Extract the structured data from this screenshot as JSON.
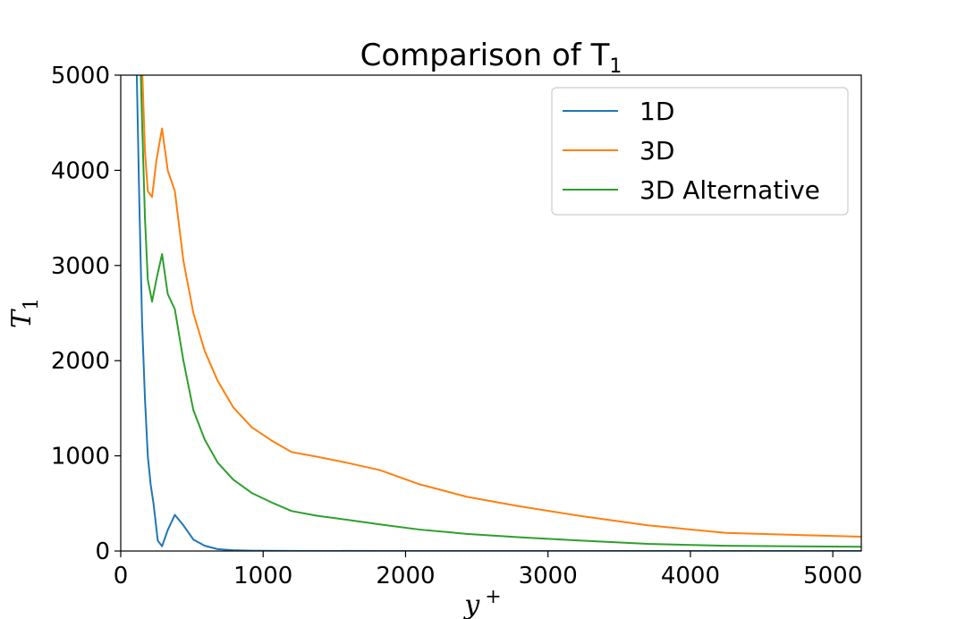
{
  "chart_data": {
    "type": "line",
    "title": "Comparison of T",
    "title_subscript": "1",
    "xlabel": "y",
    "xlabel_superscript": "+",
    "ylabel": "T",
    "ylabel_subscript": "1",
    "xlim": [
      0,
      5200
    ],
    "ylim": [
      0,
      5000
    ],
    "xticks": [
      0,
      1000,
      2000,
      3000,
      4000,
      5000
    ],
    "yticks": [
      0,
      1000,
      2000,
      3000,
      4000,
      5000
    ],
    "grid": false,
    "legend_position": "top-right",
    "series": [
      {
        "name": "1D",
        "color": "#1f77b4",
        "points": [
          [
            110,
            5200
          ],
          [
            130,
            3700
          ],
          [
            150,
            2400
          ],
          [
            170,
            1600
          ],
          [
            190,
            1000
          ],
          [
            210,
            700
          ],
          [
            230,
            500
          ],
          [
            260,
            110
          ],
          [
            290,
            50
          ],
          [
            330,
            220
          ],
          [
            380,
            380
          ],
          [
            440,
            270
          ],
          [
            510,
            120
          ],
          [
            590,
            55
          ],
          [
            680,
            20
          ],
          [
            790,
            8
          ],
          [
            920,
            4
          ],
          [
            1060,
            2
          ],
          [
            1200,
            1
          ],
          [
            2000,
            0
          ],
          [
            3000,
            0
          ],
          [
            4000,
            0
          ],
          [
            5200,
            0
          ]
        ]
      },
      {
        "name": "3D",
        "color": "#ff7f0e",
        "points": [
          [
            130,
            5600
          ],
          [
            150,
            5100
          ],
          [
            170,
            4200
          ],
          [
            190,
            3780
          ],
          [
            220,
            3720
          ],
          [
            250,
            4100
          ],
          [
            290,
            4440
          ],
          [
            330,
            4000
          ],
          [
            380,
            3780
          ],
          [
            440,
            3050
          ],
          [
            510,
            2500
          ],
          [
            590,
            2100
          ],
          [
            680,
            1790
          ],
          [
            790,
            1510
          ],
          [
            920,
            1300
          ],
          [
            1060,
            1160
          ],
          [
            1200,
            1040
          ],
          [
            1380,
            990
          ],
          [
            1580,
            930
          ],
          [
            1820,
            850
          ],
          [
            2100,
            700
          ],
          [
            2430,
            570
          ],
          [
            2800,
            470
          ],
          [
            3220,
            370
          ],
          [
            3700,
            270
          ],
          [
            4250,
            190
          ],
          [
            5200,
            150
          ]
        ]
      },
      {
        "name": "3D Alternative",
        "color": "#2ca02c",
        "points": [
          [
            130,
            5600
          ],
          [
            150,
            4500
          ],
          [
            170,
            3500
          ],
          [
            190,
            2850
          ],
          [
            220,
            2620
          ],
          [
            250,
            2850
          ],
          [
            290,
            3120
          ],
          [
            330,
            2700
          ],
          [
            380,
            2540
          ],
          [
            440,
            2000
          ],
          [
            510,
            1480
          ],
          [
            590,
            1170
          ],
          [
            680,
            930
          ],
          [
            790,
            750
          ],
          [
            920,
            610
          ],
          [
            1060,
            510
          ],
          [
            1200,
            420
          ],
          [
            1380,
            370
          ],
          [
            1580,
            330
          ],
          [
            1820,
            280
          ],
          [
            2100,
            225
          ],
          [
            2430,
            180
          ],
          [
            2800,
            145
          ],
          [
            3220,
            110
          ],
          [
            3700,
            75
          ],
          [
            4250,
            55
          ],
          [
            5200,
            45
          ]
        ]
      }
    ]
  }
}
